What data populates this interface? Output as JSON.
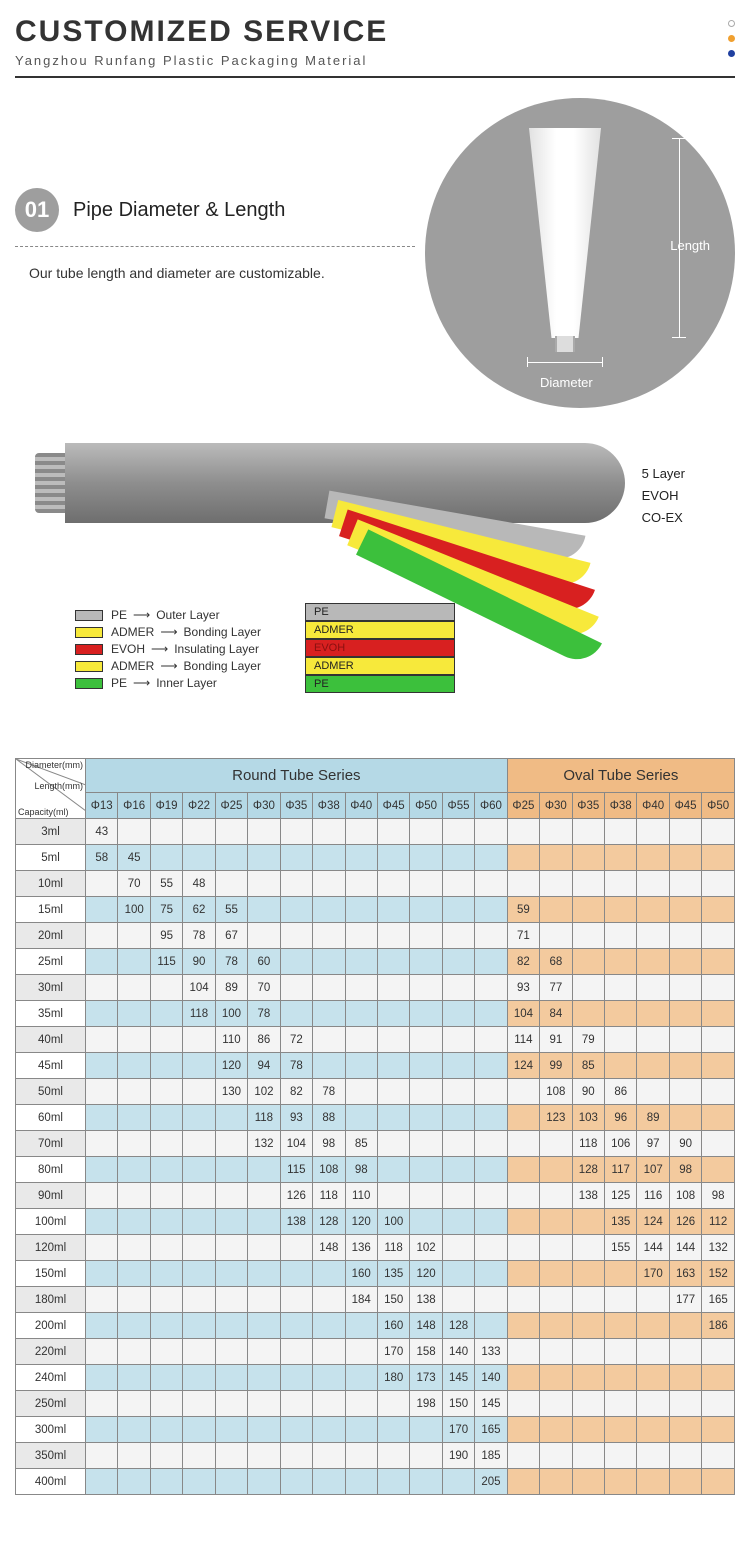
{
  "header": {
    "title": "CUSTOMIZED SERVICE",
    "subtitle": "Yangzhou Runfang Plastic Packaging Material",
    "dot_colors": [
      "#cccccc",
      "#f0a030",
      "#2040a0"
    ]
  },
  "section1": {
    "number": "01",
    "title": "Pipe Diameter & Length",
    "desc": "Our tube length and diameter are customizable.",
    "dim_length": "Length",
    "dim_diameter": "Diameter"
  },
  "layers": {
    "right_labels": [
      "5 Layer",
      "EVOH",
      "CO-EX"
    ],
    "legend": [
      {
        "sw": "#b8b8b8",
        "mat": "PE",
        "role": "Outer Layer"
      },
      {
        "sw": "#f7e93b",
        "mat": "ADMER",
        "role": "Bonding Layer"
      },
      {
        "sw": "#d82020",
        "mat": "EVOH",
        "role": "Insulating Layer"
      },
      {
        "sw": "#f7e93b",
        "mat": "ADMER",
        "role": "Bonding Layer"
      },
      {
        "sw": "#3cc03c",
        "mat": "PE",
        "role": "Inner Layer"
      }
    ],
    "stack": [
      {
        "bg": "#b8b8b8",
        "txt": "PE"
      },
      {
        "bg": "#f7e93b",
        "txt": "ADMER"
      },
      {
        "bg": "#d82020",
        "txt": "EVOH",
        "fg": "#8a1010"
      },
      {
        "bg": "#f7e93b",
        "txt": "ADMER"
      },
      {
        "bg": "#3cc03c",
        "txt": "PE"
      }
    ],
    "peel_colors": [
      "#b8b8b8",
      "#f7e93b",
      "#d82020",
      "#f7e93b",
      "#3cc03c"
    ]
  },
  "table": {
    "corner_labels": [
      "Diameter(mm)",
      "Length(mm)",
      "Capacity(ml)"
    ],
    "round_header": "Round Tube Series",
    "oval_header": "Oval Tube Series",
    "round_cols": [
      "Φ13",
      "Φ16",
      "Φ19",
      "Φ22",
      "Φ25",
      "Φ30",
      "Φ35",
      "Φ38",
      "Φ40",
      "Φ45",
      "Φ50",
      "Φ55",
      "Φ60"
    ],
    "oval_cols": [
      "Φ25",
      "Φ30",
      "Φ35",
      "Φ38",
      "Φ40",
      "Φ45",
      "Φ50"
    ],
    "rows": [
      {
        "cap": "3ml",
        "r": [
          "43",
          "",
          "",
          "",
          "",
          "",
          "",
          "",
          "",
          "",
          "",
          "",
          ""
        ],
        "o": [
          "",
          "",
          "",
          "",
          "",
          "",
          ""
        ]
      },
      {
        "cap": "5ml",
        "r": [
          "58",
          "45",
          "",
          "",
          "",
          "",
          "",
          "",
          "",
          "",
          "",
          "",
          ""
        ],
        "o": [
          "",
          "",
          "",
          "",
          "",
          "",
          ""
        ]
      },
      {
        "cap": "10ml",
        "r": [
          "",
          "70",
          "55",
          "48",
          "",
          "",
          "",
          "",
          "",
          "",
          "",
          "",
          ""
        ],
        "o": [
          "",
          "",
          "",
          "",
          "",
          "",
          ""
        ]
      },
      {
        "cap": "15ml",
        "r": [
          "",
          "100",
          "75",
          "62",
          "55",
          "",
          "",
          "",
          "",
          "",
          "",
          "",
          ""
        ],
        "o": [
          "59",
          "",
          "",
          "",
          "",
          "",
          ""
        ]
      },
      {
        "cap": "20ml",
        "r": [
          "",
          "",
          "95",
          "78",
          "67",
          "",
          "",
          "",
          "",
          "",
          "",
          "",
          ""
        ],
        "o": [
          "71",
          "",
          "",
          "",
          "",
          "",
          ""
        ]
      },
      {
        "cap": "25ml",
        "r": [
          "",
          "",
          "115",
          "90",
          "78",
          "60",
          "",
          "",
          "",
          "",
          "",
          "",
          ""
        ],
        "o": [
          "82",
          "68",
          "",
          "",
          "",
          "",
          ""
        ]
      },
      {
        "cap": "30ml",
        "r": [
          "",
          "",
          "",
          "104",
          "89",
          "70",
          "",
          "",
          "",
          "",
          "",
          "",
          ""
        ],
        "o": [
          "93",
          "77",
          "",
          "",
          "",
          "",
          ""
        ]
      },
      {
        "cap": "35ml",
        "r": [
          "",
          "",
          "",
          "118",
          "100",
          "78",
          "",
          "",
          "",
          "",
          "",
          "",
          ""
        ],
        "o": [
          "104",
          "84",
          "",
          "",
          "",
          "",
          ""
        ]
      },
      {
        "cap": "40ml",
        "r": [
          "",
          "",
          "",
          "",
          "110",
          "86",
          "72",
          "",
          "",
          "",
          "",
          "",
          ""
        ],
        "o": [
          "114",
          "91",
          "79",
          "",
          "",
          "",
          ""
        ]
      },
      {
        "cap": "45ml",
        "r": [
          "",
          "",
          "",
          "",
          "120",
          "94",
          "78",
          "",
          "",
          "",
          "",
          "",
          ""
        ],
        "o": [
          "124",
          "99",
          "85",
          "",
          "",
          "",
          ""
        ]
      },
      {
        "cap": "50ml",
        "r": [
          "",
          "",
          "",
          "",
          "130",
          "102",
          "82",
          "78",
          "",
          "",
          "",
          "",
          ""
        ],
        "o": [
          "",
          "108",
          "90",
          "86",
          "",
          "",
          ""
        ]
      },
      {
        "cap": "60ml",
        "r": [
          "",
          "",
          "",
          "",
          "",
          "118",
          "93",
          "88",
          "",
          "",
          "",
          "",
          ""
        ],
        "o": [
          "",
          "123",
          "103",
          "96",
          "89",
          "",
          ""
        ]
      },
      {
        "cap": "70ml",
        "r": [
          "",
          "",
          "",
          "",
          "",
          "132",
          "104",
          "98",
          "85",
          "",
          "",
          "",
          ""
        ],
        "o": [
          "",
          "",
          "118",
          "106",
          "97",
          "90",
          ""
        ]
      },
      {
        "cap": "80ml",
        "r": [
          "",
          "",
          "",
          "",
          "",
          "",
          "115",
          "108",
          "98",
          "",
          "",
          "",
          ""
        ],
        "o": [
          "",
          "",
          "128",
          "117",
          "107",
          "98",
          ""
        ]
      },
      {
        "cap": "90ml",
        "r": [
          "",
          "",
          "",
          "",
          "",
          "",
          "126",
          "118",
          "110",
          "",
          "",
          "",
          ""
        ],
        "o": [
          "",
          "",
          "138",
          "125",
          "116",
          "108",
          "98"
        ]
      },
      {
        "cap": "100ml",
        "r": [
          "",
          "",
          "",
          "",
          "",
          "",
          "138",
          "128",
          "120",
          "100",
          "",
          "",
          ""
        ],
        "o": [
          "",
          "",
          "",
          "135",
          "124",
          "126",
          "112"
        ]
      },
      {
        "cap": "120ml",
        "r": [
          "",
          "",
          "",
          "",
          "",
          "",
          "",
          "148",
          "136",
          "118",
          "102",
          "",
          ""
        ],
        "o": [
          "",
          "",
          "",
          "155",
          "144",
          "144",
          "132"
        ]
      },
      {
        "cap": "150ml",
        "r": [
          "",
          "",
          "",
          "",
          "",
          "",
          "",
          "",
          "160",
          "135",
          "120",
          "",
          ""
        ],
        "o": [
          "",
          "",
          "",
          "",
          "170",
          "163",
          "152"
        ]
      },
      {
        "cap": "180ml",
        "r": [
          "",
          "",
          "",
          "",
          "",
          "",
          "",
          "",
          "184",
          "150",
          "138",
          "",
          ""
        ],
        "o": [
          "",
          "",
          "",
          "",
          "",
          "177",
          "165"
        ]
      },
      {
        "cap": "200ml",
        "r": [
          "",
          "",
          "",
          "",
          "",
          "",
          "",
          "",
          "",
          "160",
          "148",
          "128",
          ""
        ],
        "o": [
          "",
          "",
          "",
          "",
          "",
          "",
          "186"
        ]
      },
      {
        "cap": "220ml",
        "r": [
          "",
          "",
          "",
          "",
          "",
          "",
          "",
          "",
          "",
          "170",
          "158",
          "140",
          "133"
        ],
        "o": [
          "",
          "",
          "",
          "",
          "",
          "",
          ""
        ]
      },
      {
        "cap": "240ml",
        "r": [
          "",
          "",
          "",
          "",
          "",
          "",
          "",
          "",
          "",
          "180",
          "173",
          "145",
          "140"
        ],
        "o": [
          "",
          "",
          "",
          "",
          "",
          "",
          ""
        ]
      },
      {
        "cap": "250ml",
        "r": [
          "",
          "",
          "",
          "",
          "",
          "",
          "",
          "",
          "",
          "",
          "198",
          "150",
          "145"
        ],
        "o": [
          "",
          "",
          "",
          "",
          "",
          "",
          ""
        ]
      },
      {
        "cap": "300ml",
        "r": [
          "",
          "",
          "",
          "",
          "",
          "",
          "",
          "",
          "",
          "",
          "",
          "170",
          "165"
        ],
        "o": [
          "",
          "",
          "",
          "",
          "",
          "",
          ""
        ]
      },
      {
        "cap": "350ml",
        "r": [
          "",
          "",
          "",
          "",
          "",
          "",
          "",
          "",
          "",
          "",
          "",
          "190",
          "185"
        ],
        "o": [
          "",
          "",
          "",
          "",
          "",
          "",
          ""
        ]
      },
      {
        "cap": "400ml",
        "r": [
          "",
          "",
          "",
          "",
          "",
          "",
          "",
          "",
          "",
          "",
          "",
          "",
          "205"
        ],
        "o": [
          "",
          "",
          "",
          "",
          "",
          "",
          ""
        ]
      }
    ]
  }
}
